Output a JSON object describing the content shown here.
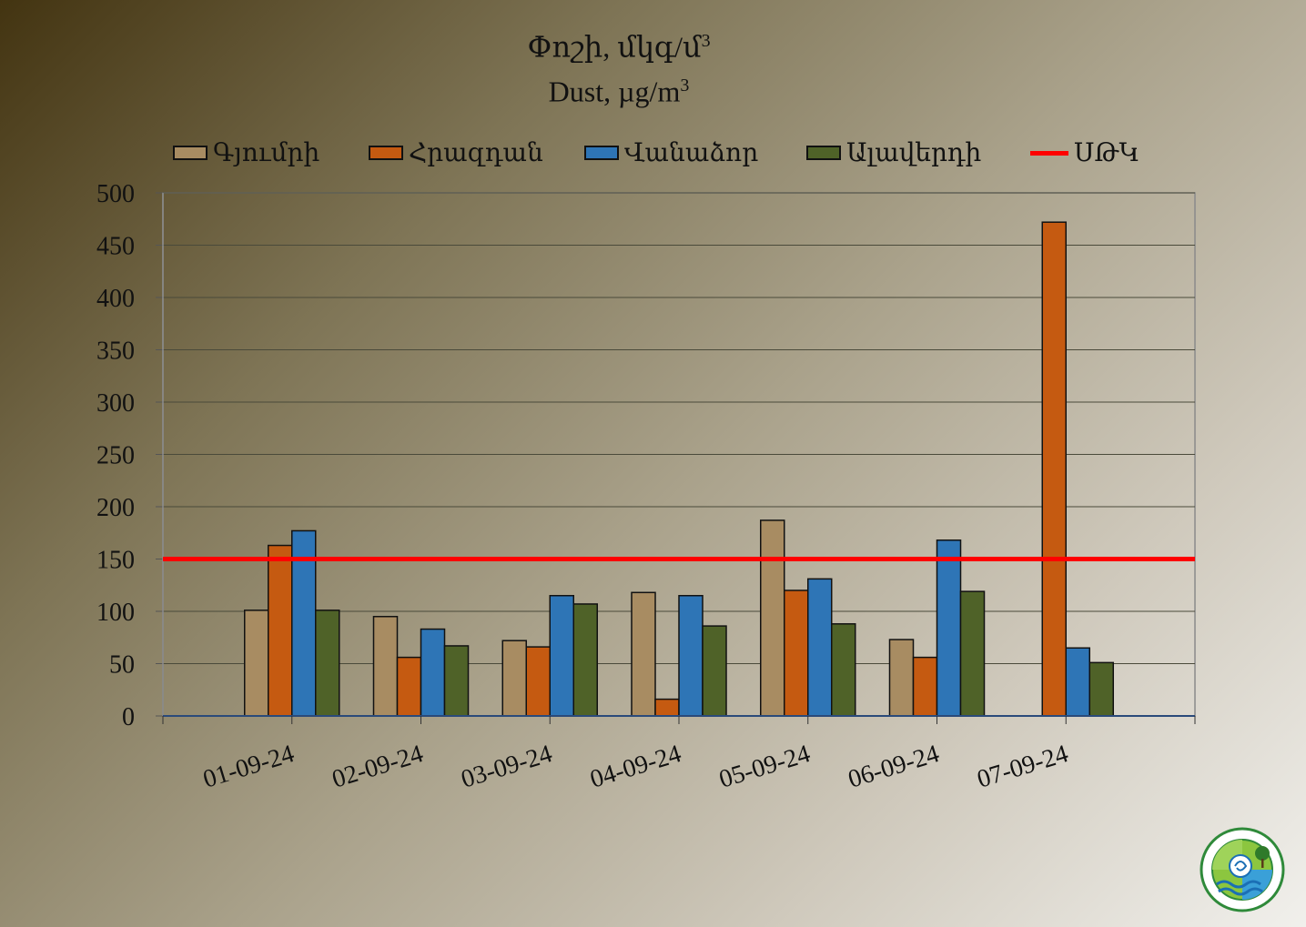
{
  "title": {
    "line1": "Փոշի, մկգ/մ",
    "line1_sup": "3",
    "line2": "Dust, µg/m",
    "line2_sup": "3"
  },
  "chart_data": {
    "type": "bar",
    "categories": [
      "01-09-24",
      "02-09-24",
      "03-09-24",
      "04-09-24",
      "05-09-24",
      "06-09-24",
      "07-09-24"
    ],
    "series": [
      {
        "name": "Գյումրի",
        "color": "#a88c62",
        "values": [
          101,
          95,
          72,
          118,
          187,
          73,
          null
        ]
      },
      {
        "name": "Հրազդան",
        "color": "#c55a11",
        "values": [
          163,
          56,
          66,
          16,
          120,
          56,
          472
        ]
      },
      {
        "name": "Վանաձոր",
        "color": "#2e75b6",
        "values": [
          177,
          83,
          115,
          115,
          131,
          168,
          65
        ]
      },
      {
        "name": "Ալավերդի",
        "color": "#4f6228",
        "values": [
          101,
          67,
          107,
          86,
          88,
          119,
          51
        ]
      }
    ],
    "reference_line": {
      "name": "ՍԹԿ",
      "value": 150,
      "color": "#ff0000"
    },
    "ylim": [
      0,
      500
    ],
    "yticks": [
      0,
      50,
      100,
      150,
      200,
      250,
      300,
      350,
      400,
      450,
      500
    ],
    "grid": true,
    "legend_position": "top"
  }
}
